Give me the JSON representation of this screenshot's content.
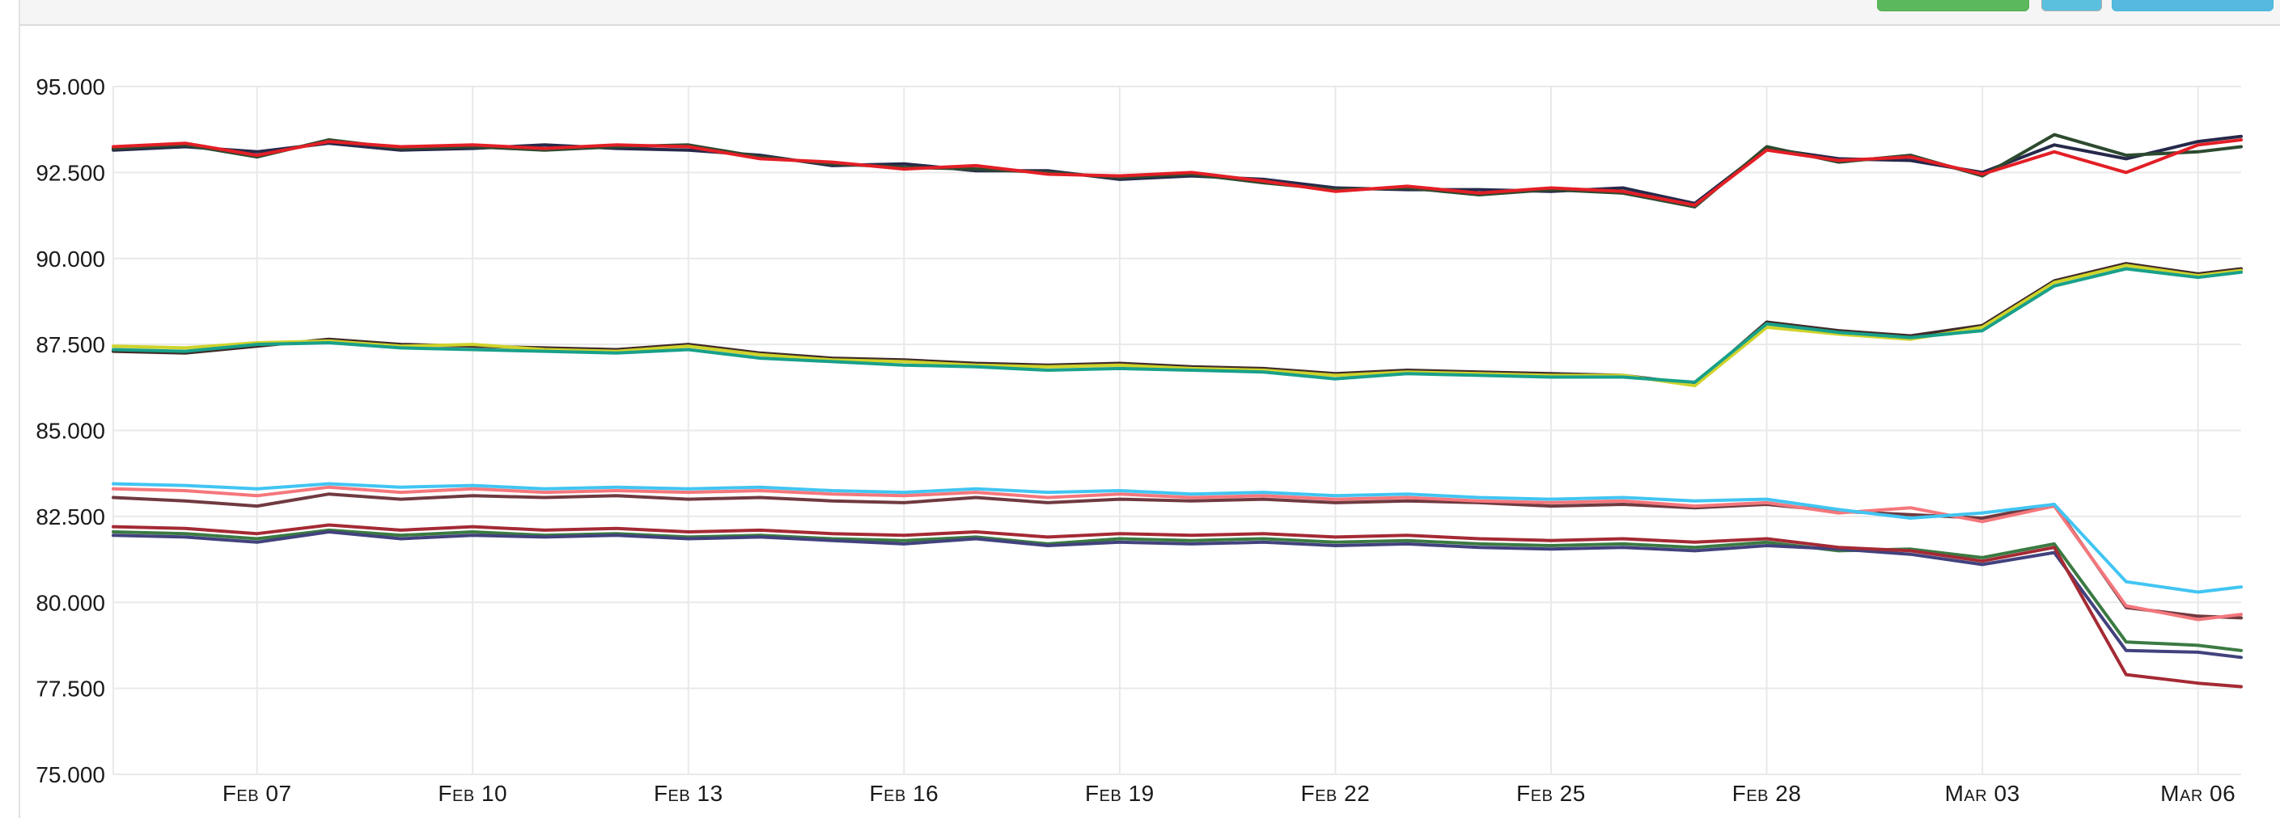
{
  "toolbar": {
    "buttons": [
      {
        "id": "toolbar-button-green",
        "color": "#5cb85c"
      },
      {
        "id": "toolbar-button-blue-small",
        "color": "#5bc0de"
      },
      {
        "id": "toolbar-button-blue-wide",
        "color": "#56b9e0"
      }
    ]
  },
  "chart_data": {
    "type": "line",
    "title": "",
    "xlabel": "",
    "ylabel": "",
    "ylim": [
      75,
      95
    ],
    "grid": true,
    "legend": "none",
    "yticks": [
      "95.000",
      "92.500",
      "90.000",
      "87.500",
      "85.000",
      "82.500",
      "80.000",
      "77.500",
      "75.000"
    ],
    "xticks": [
      "Feb 07",
      "Feb 10",
      "Feb 13",
      "Feb 16",
      "Feb 19",
      "Feb 22",
      "Feb 25",
      "Feb 28",
      "Mar 03",
      "Mar 06"
    ],
    "x": [
      "Feb 05",
      "Feb 06",
      "Feb 07",
      "Feb 08",
      "Feb 09",
      "Feb 10",
      "Feb 11",
      "Feb 12",
      "Feb 13",
      "Feb 14",
      "Feb 15",
      "Feb 16",
      "Feb 17",
      "Feb 18",
      "Feb 19",
      "Feb 20",
      "Feb 21",
      "Feb 22",
      "Feb 23",
      "Feb 24",
      "Feb 25",
      "Feb 26",
      "Feb 27",
      "Feb 28",
      "Mar 01",
      "Mar 02",
      "Mar 03",
      "Mar 04",
      "Mar 05",
      "Mar 06",
      "Mar 07"
    ],
    "series": [
      {
        "name": "navy",
        "color": "#26294a",
        "values": [
          93.15,
          93.25,
          93.1,
          93.35,
          93.15,
          93.2,
          93.3,
          93.2,
          93.15,
          93.0,
          92.7,
          92.75,
          92.55,
          92.55,
          92.3,
          92.4,
          92.3,
          92.05,
          92.0,
          92.0,
          91.95,
          92.05,
          91.6,
          93.2,
          92.9,
          92.85,
          92.5,
          93.3,
          92.9,
          93.4,
          93.55
        ]
      },
      {
        "name": "dark-green",
        "color": "#2d4a2f",
        "values": [
          93.2,
          93.3,
          92.95,
          93.45,
          93.2,
          93.25,
          93.15,
          93.25,
          93.3,
          92.95,
          92.75,
          92.65,
          92.6,
          92.5,
          92.35,
          92.45,
          92.2,
          92.0,
          92.05,
          91.85,
          92.0,
          91.9,
          91.5,
          93.25,
          92.8,
          93.0,
          92.4,
          93.6,
          93.0,
          93.1,
          93.25
        ]
      },
      {
        "name": "red",
        "color": "#e31f26",
        "values": [
          93.25,
          93.35,
          93.0,
          93.4,
          93.25,
          93.3,
          93.2,
          93.3,
          93.25,
          92.9,
          92.8,
          92.6,
          92.7,
          92.45,
          92.4,
          92.5,
          92.25,
          91.95,
          92.1,
          91.9,
          92.05,
          91.95,
          91.55,
          93.15,
          92.85,
          92.95,
          92.45,
          93.1,
          92.5,
          93.3,
          93.45
        ]
      },
      {
        "name": "dark-brown",
        "color": "#3f2a28",
        "values": [
          87.3,
          87.25,
          87.45,
          87.65,
          87.5,
          87.45,
          87.4,
          87.35,
          87.5,
          87.25,
          87.1,
          87.05,
          86.95,
          86.9,
          86.95,
          86.85,
          86.8,
          86.65,
          86.75,
          86.7,
          86.65,
          86.6,
          86.35,
          88.15,
          87.9,
          87.75,
          88.05,
          89.35,
          89.85,
          89.55,
          89.7
        ]
      },
      {
        "name": "yellow",
        "color": "#cfd32b",
        "values": [
          87.45,
          87.4,
          87.55,
          87.6,
          87.45,
          87.5,
          87.35,
          87.3,
          87.45,
          87.2,
          87.05,
          87.0,
          86.9,
          86.85,
          86.9,
          86.8,
          86.75,
          86.6,
          86.7,
          86.65,
          86.6,
          86.6,
          86.3,
          88.0,
          87.8,
          87.65,
          88.0,
          89.3,
          89.8,
          89.5,
          89.65
        ]
      },
      {
        "name": "teal",
        "color": "#18a08a",
        "values": [
          87.35,
          87.3,
          87.5,
          87.55,
          87.4,
          87.35,
          87.3,
          87.25,
          87.35,
          87.1,
          87.0,
          86.9,
          86.85,
          86.75,
          86.8,
          86.75,
          86.7,
          86.5,
          86.65,
          86.6,
          86.55,
          86.55,
          86.4,
          88.1,
          87.85,
          87.7,
          87.9,
          89.2,
          89.7,
          89.45,
          89.6
        ]
      },
      {
        "name": "maroon",
        "color": "#703a40",
        "values": [
          83.05,
          82.95,
          82.8,
          83.15,
          83.0,
          83.1,
          83.05,
          83.1,
          83.0,
          83.05,
          82.95,
          82.9,
          83.05,
          82.9,
          83.0,
          82.95,
          83.0,
          82.9,
          82.95,
          82.9,
          82.8,
          82.85,
          82.75,
          82.85,
          82.65,
          82.55,
          82.45,
          82.85,
          79.85,
          79.6,
          79.55
        ]
      },
      {
        "name": "salmon",
        "color": "#f4777c",
        "values": [
          83.3,
          83.25,
          83.1,
          83.35,
          83.2,
          83.3,
          83.2,
          83.25,
          83.2,
          83.25,
          83.15,
          83.1,
          83.2,
          83.05,
          83.15,
          83.05,
          83.1,
          83.0,
          83.05,
          82.95,
          82.9,
          82.95,
          82.8,
          82.9,
          82.6,
          82.75,
          82.35,
          82.8,
          79.9,
          79.5,
          79.65
        ]
      },
      {
        "name": "cyan",
        "color": "#41c5f2",
        "values": [
          83.45,
          83.4,
          83.3,
          83.45,
          83.35,
          83.4,
          83.3,
          83.35,
          83.3,
          83.35,
          83.25,
          83.2,
          83.3,
          83.2,
          83.25,
          83.15,
          83.2,
          83.1,
          83.15,
          83.05,
          83.0,
          83.05,
          82.95,
          83.0,
          82.7,
          82.45,
          82.6,
          82.85,
          80.6,
          80.3,
          80.45
        ]
      },
      {
        "name": "forest-green",
        "color": "#3b7a42",
        "values": [
          82.05,
          82.0,
          81.85,
          82.1,
          81.95,
          82.05,
          81.95,
          82.0,
          81.9,
          81.95,
          81.85,
          81.8,
          81.9,
          81.7,
          81.85,
          81.8,
          81.85,
          81.75,
          81.8,
          81.7,
          81.65,
          81.7,
          81.6,
          81.75,
          81.5,
          81.55,
          81.3,
          81.7,
          78.85,
          78.75,
          78.6
        ]
      },
      {
        "name": "indigo",
        "color": "#42427e",
        "values": [
          81.95,
          81.9,
          81.75,
          82.05,
          81.85,
          81.95,
          81.9,
          81.95,
          81.85,
          81.9,
          81.8,
          81.7,
          81.85,
          81.65,
          81.75,
          81.7,
          81.75,
          81.65,
          81.7,
          81.6,
          81.55,
          81.6,
          81.5,
          81.65,
          81.55,
          81.4,
          81.1,
          81.45,
          78.6,
          78.55,
          78.4
        ]
      },
      {
        "name": "crimson",
        "color": "#a42a34",
        "values": [
          82.2,
          82.15,
          82.0,
          82.25,
          82.1,
          82.2,
          82.1,
          82.15,
          82.05,
          82.1,
          82.0,
          81.95,
          82.05,
          81.9,
          82.0,
          81.95,
          82.0,
          81.9,
          81.95,
          81.85,
          81.8,
          81.85,
          81.75,
          81.85,
          81.6,
          81.5,
          81.2,
          81.6,
          77.9,
          77.65,
          77.55
        ]
      }
    ]
  }
}
